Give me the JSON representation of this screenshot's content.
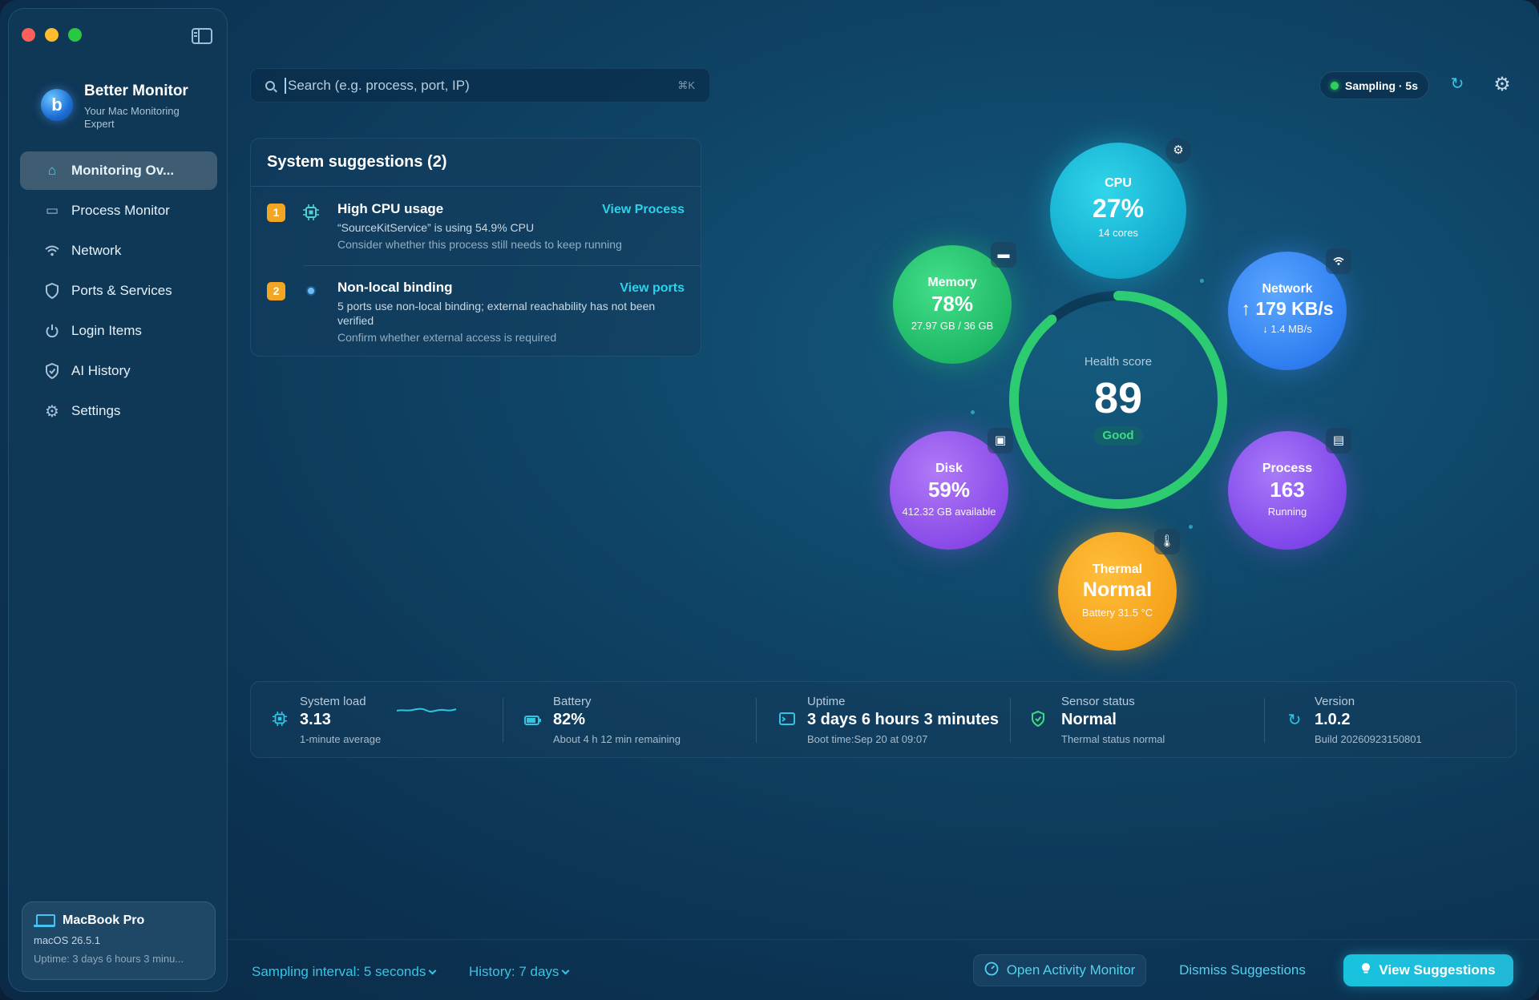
{
  "app": {
    "name": "Better Monitor",
    "tagline": "Your Mac Monitoring Expert"
  },
  "sidebar": {
    "items": [
      {
        "label": "Monitoring Ov...",
        "icon": "home-icon",
        "active": true
      },
      {
        "label": "Process Monitor",
        "icon": "monitor-icon"
      },
      {
        "label": "Network",
        "icon": "wifi-icon"
      },
      {
        "label": "Ports & Services",
        "icon": "shield-icon"
      },
      {
        "label": "Login Items",
        "icon": "power-icon"
      },
      {
        "label": "AI History",
        "icon": "shield-check-icon"
      },
      {
        "label": "Settings",
        "icon": "gear-icon"
      }
    ],
    "device": {
      "name": "MacBook Pro",
      "os": "macOS 26.5.1",
      "uptime": "Uptime: 3 days 6 hours 3 minu..."
    }
  },
  "search": {
    "placeholder": "Search (e.g. process, port, IP)",
    "shortcut": "⌘K"
  },
  "topbar": {
    "sampling": "Sampling · 5s"
  },
  "suggestions": {
    "title": "System suggestions (2)",
    "items": [
      {
        "num": "1",
        "title": "High CPU usage",
        "desc": "“SourceKitService” is using 54.9% CPU",
        "hint": "Consider whether this process still needs to keep running",
        "action": "View Process",
        "icon": "cpu-chip-icon"
      },
      {
        "num": "2",
        "title": "Non-local binding",
        "desc": "5 ports use non-local binding; external reachability has not been verified",
        "hint": "Confirm whether external access is required",
        "action": "View ports",
        "icon": "dot-icon"
      }
    ]
  },
  "health": {
    "label": "Health score",
    "score": "89",
    "status": "Good",
    "fraction": 0.89,
    "colors": {
      "ring": "#2ecc71",
      "track": "#0d3a57"
    }
  },
  "metrics": {
    "cpu": {
      "label": "CPU",
      "value": "27%",
      "sub": "14 cores",
      "icon": "gear-chip-icon"
    },
    "memory": {
      "label": "Memory",
      "value": "78%",
      "sub": "27.97 GB / 36 GB",
      "icon": "memory-icon"
    },
    "network": {
      "label": "Network",
      "value": "↑ 179 KB/s",
      "sub": "↓ 1.4 MB/s",
      "icon": "wifi-icon"
    },
    "disk": {
      "label": "Disk",
      "value": "59%",
      "sub": "412.32 GB available",
      "icon": "disk-icon"
    },
    "process": {
      "label": "Process",
      "value": "163",
      "sub": "Running",
      "icon": "terminal-icon"
    },
    "thermal": {
      "label": "Thermal",
      "value": "Normal",
      "sub": "Battery 31.5 °C",
      "icon": "thermometer-icon"
    }
  },
  "stats": {
    "load": {
      "label": "System load",
      "value": "3.13",
      "sub": "1-minute average"
    },
    "battery": {
      "label": "Battery",
      "value": "82%",
      "sub": "About 4 h 12 min remaining"
    },
    "uptime": {
      "label": "Uptime",
      "value": "3 days 6 hours 3 minutes",
      "sub": "Boot time:Sep 20 at 09:07"
    },
    "sensor": {
      "label": "Sensor status",
      "value": "Normal",
      "sub": "Thermal status normal"
    },
    "version": {
      "label": "Version",
      "value": "1.0.2",
      "sub": "Build 20260923150801"
    }
  },
  "footer": {
    "sampling_interval": "Sampling interval: 5 seconds",
    "history": "History: 7 days",
    "open_activity": "Open Activity Monitor",
    "dismiss": "Dismiss Suggestions",
    "view": "View Suggestions"
  },
  "colors": {
    "accent": "#2ad3ea",
    "badge": "#f3a623",
    "good": "#3ddc84"
  }
}
